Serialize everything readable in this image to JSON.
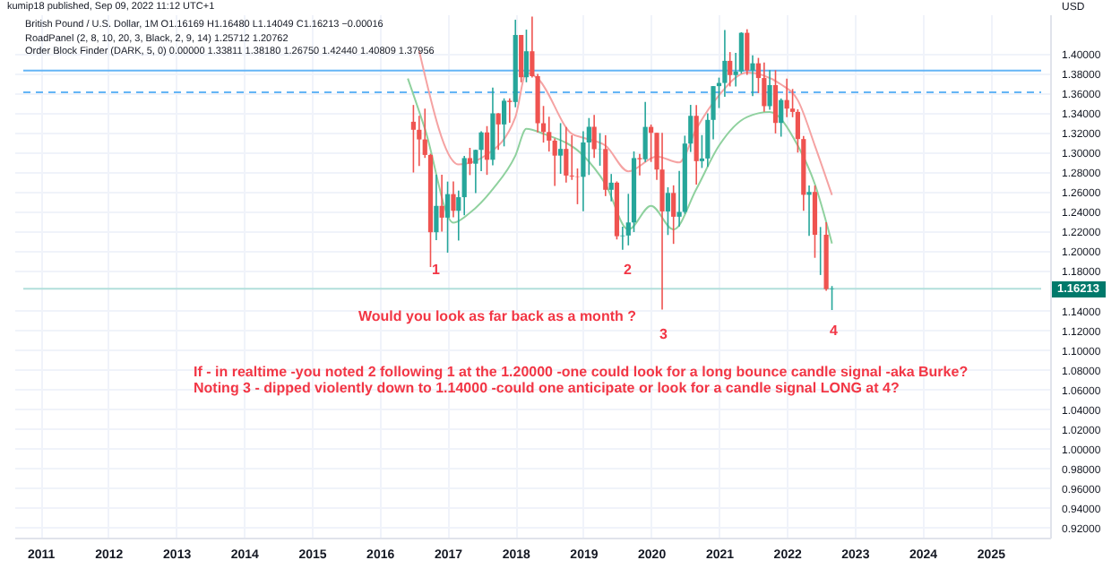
{
  "chart_data": {
    "type": "candlestick",
    "x": [
      "2016-07",
      "2016-08",
      "2016-09",
      "2016-10",
      "2016-11",
      "2016-12",
      "2017-01",
      "2017-02",
      "2017-03",
      "2017-04",
      "2017-05",
      "2017-06",
      "2017-07",
      "2017-08",
      "2017-09",
      "2017-10",
      "2017-11",
      "2017-12",
      "2018-01",
      "2018-02",
      "2018-03",
      "2018-04",
      "2018-05",
      "2018-06",
      "2018-07",
      "2018-08",
      "2018-09",
      "2018-10",
      "2018-11",
      "2018-12",
      "2019-01",
      "2019-02",
      "2019-03",
      "2019-04",
      "2019-05",
      "2019-06",
      "2019-07",
      "2019-08",
      "2019-09",
      "2019-10",
      "2019-11",
      "2019-12",
      "2020-01",
      "2020-02",
      "2020-03",
      "2020-04",
      "2020-05",
      "2020-06",
      "2020-07",
      "2020-08",
      "2020-09",
      "2020-10",
      "2020-11",
      "2020-12",
      "2021-01",
      "2021-02",
      "2021-03",
      "2021-04",
      "2021-05",
      "2021-06",
      "2021-07",
      "2021-08",
      "2021-09",
      "2021-10",
      "2021-11",
      "2021-12",
      "2022-01",
      "2022-02",
      "2022-03",
      "2022-04",
      "2022-05",
      "2022-06",
      "2022-07",
      "2022-08",
      "2022-09"
    ],
    "ohlc": [
      [
        1.3312,
        1.3482,
        1.2798,
        1.3231
      ],
      [
        1.3231,
        1.3373,
        1.2865,
        1.3133
      ],
      [
        1.3133,
        1.3445,
        1.2946,
        1.2976
      ],
      [
        1.2976,
        1.2988,
        1.1841,
        1.2193
      ],
      [
        1.2193,
        1.2775,
        1.2113,
        1.246
      ],
      [
        1.246,
        1.2775,
        1.2199,
        1.2341
      ],
      [
        1.2341,
        1.2706,
        1.1986,
        1.2579
      ],
      [
        1.2579,
        1.2707,
        1.2345,
        1.241
      ],
      [
        1.241,
        1.2615,
        1.2109,
        1.2548
      ],
      [
        1.2548,
        1.2966,
        1.2365,
        1.2944
      ],
      [
        1.2944,
        1.3048,
        1.2772,
        1.2887
      ],
      [
        1.2887,
        1.303,
        1.2589,
        1.3027
      ],
      [
        1.3027,
        1.3216,
        1.2811,
        1.3204
      ],
      [
        1.3204,
        1.3268,
        1.2774,
        1.2927
      ],
      [
        1.2927,
        1.3658,
        1.2871,
        1.3397
      ],
      [
        1.3397,
        1.34,
        1.3027,
        1.3285
      ],
      [
        1.3285,
        1.3549,
        1.3063,
        1.3525
      ],
      [
        1.3525,
        1.3549,
        1.3302,
        1.3512
      ],
      [
        1.3512,
        1.4345,
        1.3459,
        1.4191
      ],
      [
        1.4191,
        1.4191,
        1.3712,
        1.3763
      ],
      [
        1.3763,
        1.4245,
        1.3712,
        1.4026
      ],
      [
        1.4026,
        1.4377,
        1.376,
        1.3774
      ],
      [
        1.3774,
        1.3796,
        1.3205,
        1.3297
      ],
      [
        1.3297,
        1.3472,
        1.3101,
        1.3208
      ],
      [
        1.3208,
        1.3363,
        1.301,
        1.3121
      ],
      [
        1.3121,
        1.3142,
        1.2662,
        1.2969
      ],
      [
        1.2969,
        1.3298,
        1.2785,
        1.3037
      ],
      [
        1.3037,
        1.3258,
        1.2696,
        1.2767
      ],
      [
        1.2767,
        1.3175,
        1.2723,
        1.2758
      ],
      [
        1.2758,
        1.2839,
        1.2477,
        1.2754
      ],
      [
        1.2754,
        1.3215,
        1.2405,
        1.3102
      ],
      [
        1.3102,
        1.335,
        1.2773,
        1.3261
      ],
      [
        1.3261,
        1.3381,
        1.2945,
        1.3034
      ],
      [
        1.3034,
        1.3197,
        1.2867,
        1.3036
      ],
      [
        1.3036,
        1.3176,
        1.2559,
        1.2623
      ],
      [
        1.2623,
        1.2783,
        1.2506,
        1.2695
      ],
      [
        1.2695,
        1.2708,
        1.212,
        1.2153
      ],
      [
        1.2153,
        1.225,
        1.2015,
        1.216
      ],
      [
        1.216,
        1.2582,
        1.206,
        1.2292
      ],
      [
        1.2292,
        1.3012,
        1.2195,
        1.2944
      ],
      [
        1.2944,
        1.2986,
        1.2769,
        1.2932
      ],
      [
        1.2932,
        1.3514,
        1.2904,
        1.326
      ],
      [
        1.326,
        1.3284,
        1.2905,
        1.32
      ],
      [
        1.32,
        1.32,
        1.2724,
        1.2828
      ],
      [
        1.2828,
        1.32,
        1.1409,
        1.2404
      ],
      [
        1.2404,
        1.2648,
        1.2165,
        1.2591
      ],
      [
        1.2591,
        1.2668,
        1.2075,
        1.235
      ],
      [
        1.235,
        1.2813,
        1.2251,
        1.2399
      ],
      [
        1.2399,
        1.3171,
        1.238,
        1.3091
      ],
      [
        1.3091,
        1.3483,
        1.3006,
        1.3372
      ],
      [
        1.3372,
        1.3482,
        1.2676,
        1.2913
      ],
      [
        1.2913,
        1.3177,
        1.2844,
        1.294
      ],
      [
        1.294,
        1.3398,
        1.2855,
        1.3331
      ],
      [
        1.3331,
        1.3675,
        1.3135,
        1.3673
      ],
      [
        1.3673,
        1.3759,
        1.3451,
        1.3705
      ],
      [
        1.3705,
        1.4241,
        1.3566,
        1.3929
      ],
      [
        1.3929,
        1.4018,
        1.367,
        1.3785
      ],
      [
        1.3785,
        1.4009,
        1.3669,
        1.3821
      ],
      [
        1.3821,
        1.4219,
        1.38,
        1.4213
      ],
      [
        1.4213,
        1.4249,
        1.3787,
        1.3831
      ],
      [
        1.3831,
        1.3984,
        1.3572,
        1.3904
      ],
      [
        1.3904,
        1.3959,
        1.3602,
        1.3755
      ],
      [
        1.3755,
        1.3913,
        1.3412,
        1.347
      ],
      [
        1.347,
        1.3834,
        1.3434,
        1.3683
      ],
      [
        1.3683,
        1.3834,
        1.3194,
        1.33
      ],
      [
        1.33,
        1.3548,
        1.3161,
        1.3532
      ],
      [
        1.3532,
        1.3749,
        1.3358,
        1.3445
      ],
      [
        1.3445,
        1.3644,
        1.3358,
        1.3412
      ],
      [
        1.3412,
        1.3438,
        1.3,
        1.3137
      ],
      [
        1.3137,
        1.3167,
        1.2411,
        1.2572
      ],
      [
        1.2572,
        1.2667,
        1.2155,
        1.2601
      ],
      [
        1.2601,
        1.2666,
        1.1934,
        1.2167
      ],
      [
        1.2167,
        1.2246,
        1.176,
        1.2168
      ],
      [
        1.2168,
        1.2294,
        1.16,
        1.1617
      ],
      [
        1.16169,
        1.1648,
        1.14049,
        1.16213
      ]
    ],
    "colors": [
      "#ef5350",
      "#ef5350",
      "#ef5350",
      "#ef5350",
      "#26a69a",
      "#ef5350",
      "#26a69a",
      "#ef5350",
      "#26a69a",
      "#26a69a",
      "#ef5350",
      "#26a69a",
      "#26a69a",
      "#ef5350",
      "#26a69a",
      "#ef5350",
      "#26a69a",
      "#ef5350",
      "#26a69a",
      "#ef5350",
      "#26a69a",
      "#ef5350",
      "#ef5350",
      "#ef5350",
      "#ef5350",
      "#ef5350",
      "#26a69a",
      "#ef5350",
      "#ef5350",
      "#ef5350",
      "#26a69a",
      "#26a69a",
      "#ef5350",
      "#26a69a",
      "#ef5350",
      "#26a69a",
      "#ef5350",
      "#26a69a",
      "#26a69a",
      "#26a69a",
      "#ef5350",
      "#26a69a",
      "#ef5350",
      "#ef5350",
      "#ef5350",
      "#26a69a",
      "#ef5350",
      "#26a69a",
      "#26a69a",
      "#26a69a",
      "#ef5350",
      "#26a69a",
      "#26a69a",
      "#26a69a",
      "#26a69a",
      "#26a69a",
      "#ef5350",
      "#26a69a",
      "#26a69a",
      "#ef5350",
      "#26a69a",
      "#ef5350",
      "#ef5350",
      "#26a69a",
      "#ef5350",
      "#26a69a",
      "#ef5350",
      "#ef5350",
      "#ef5350",
      "#ef5350",
      "#26a69a",
      "#ef5350",
      "#26a69a",
      "#ef5350",
      "#26a69a"
    ],
    "series": [
      {
        "type": "line",
        "color": "#f5a3a3",
        "x": [
          "2016-08",
          "2017-03",
          "2017-08",
          "2018-01",
          "2018-03",
          "2018-05",
          "2018-11",
          "2019-01",
          "2019-05",
          "2019-09",
          "2020-02",
          "2020-06",
          "2020-09",
          "2021-01",
          "2021-06",
          "2021-12",
          "2022-03",
          "2022-06",
          "2022-09"
        ],
        "values": [
          1.403,
          1.288,
          1.298,
          1.336,
          1.381,
          1.375,
          1.319,
          1.315,
          1.307,
          1.281,
          1.296,
          1.29,
          1.324,
          1.358,
          1.381,
          1.369,
          1.353,
          1.307,
          1.257
        ]
      },
      {
        "type": "line",
        "color": "#8fd19e",
        "x": [
          "2016-06",
          "2016-09",
          "2017-02",
          "2017-05",
          "2017-09",
          "2018-01",
          "2018-03",
          "2018-06",
          "2019-01",
          "2019-05",
          "2019-09",
          "2020-01",
          "2020-05",
          "2020-09",
          "2021-01",
          "2021-06",
          "2021-10",
          "2022-03",
          "2022-06",
          "2022-09"
        ],
        "values": [
          1.375,
          1.324,
          1.229,
          1.239,
          1.263,
          1.297,
          1.324,
          1.319,
          1.297,
          1.268,
          1.222,
          1.246,
          1.222,
          1.263,
          1.307,
          1.336,
          1.341,
          1.307,
          1.268,
          1.208
        ]
      }
    ],
    "xlim": [
      "2010-10",
      "2025-10"
    ],
    "xticks": [
      "2011",
      "2012",
      "2013",
      "2014",
      "2015",
      "2016",
      "2017",
      "2018",
      "2019",
      "2020",
      "2021",
      "2022",
      "2023",
      "2024",
      "2025"
    ],
    "ylim": [
      0.91,
      1.44
    ],
    "yticks": [
      {
        "value": 0.92,
        "label": "0.92000"
      },
      {
        "value": 0.94,
        "label": "0.94000"
      },
      {
        "value": 0.96,
        "label": "0.96000"
      },
      {
        "value": 0.98,
        "label": "0.98000"
      },
      {
        "value": 1.0,
        "label": "1.00000"
      },
      {
        "value": 1.02,
        "label": "1.02000"
      },
      {
        "value": 1.04,
        "label": "1.04000"
      },
      {
        "value": 1.06,
        "label": "1.06000"
      },
      {
        "value": 1.08,
        "label": "1.08000"
      },
      {
        "value": 1.1,
        "label": "1.10000"
      },
      {
        "value": 1.12,
        "label": "1.12000"
      },
      {
        "value": 1.14,
        "label": "1.14000"
      },
      {
        "value": 1.18,
        "label": "1.18000"
      },
      {
        "value": 1.2,
        "label": "1.20000"
      },
      {
        "value": 1.22,
        "label": "1.22000"
      },
      {
        "value": 1.24,
        "label": "1.24000"
      },
      {
        "value": 1.26,
        "label": "1.26000"
      },
      {
        "value": 1.28,
        "label": "1.28000"
      },
      {
        "value": 1.3,
        "label": "1.30000"
      },
      {
        "value": 1.32,
        "label": "1.32000"
      },
      {
        "value": 1.34,
        "label": "1.34000"
      },
      {
        "value": 1.36,
        "label": "1.36000"
      },
      {
        "value": 1.38,
        "label": "1.38000"
      },
      {
        "value": 1.4,
        "label": "1.40000"
      }
    ],
    "ylabel": "USD",
    "grid": true,
    "ref_lines": [
      {
        "axis": "y",
        "value": 1.383,
        "color": "#64b5f6",
        "line_style": "solid"
      },
      {
        "axis": "y",
        "value": 1.361,
        "color": "#64b5f6",
        "line_style": "dashed"
      },
      {
        "axis": "y",
        "value": 1.16213,
        "color": "#b2dfdb",
        "line_style": "solid",
        "label": "1.16213"
      }
    ],
    "annotations": [
      "kumip18 published, Sep 09, 2022 11:12 UTC+1",
      "British Pound / U.S. Dollar, 1M   O1.16169 H1.16480 L1.14049 C1.16213 −0.00016",
      "RoadPanel (2, 8, 10, 20, 3, Black, 2, 9, 14) 1.25712 1.20762",
      "Order Block Finder (DARK, 5, 0) 0.00000 1.33811 1.38180 1.26750 1.42440 1.40809 1.37956",
      "Would you look as far back as a month ?",
      "If - in realtime -you noted 2 following 1 at the 1.20000 -one could look for a long bounce candle signal -aka Burke?",
      "Noting 3 - dipped violently down to 1.14000 -could one anticipate or look for a candle signal LONG at 4?",
      "1",
      "2",
      "3",
      "4"
    ]
  }
}
